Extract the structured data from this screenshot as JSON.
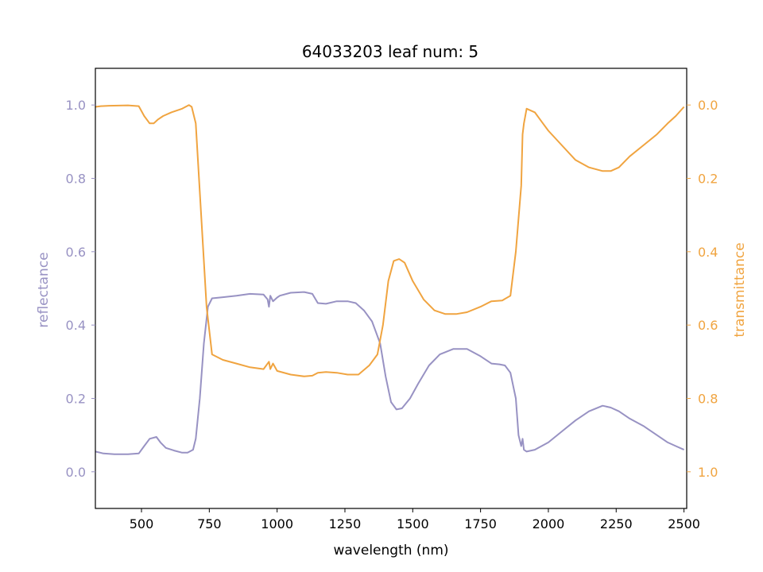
{
  "chart_data": {
    "type": "line",
    "title": "64033203 leaf num: 5",
    "xlabel": "wavelength (nm)",
    "ylabel_left": "reflectance",
    "ylabel_right": "transmittance",
    "xlim": [
      330,
      2510
    ],
    "ylim_left": [
      -0.1,
      1.1
    ],
    "ylim_right": [
      1.1,
      -0.1
    ],
    "right_axis_inverted": true,
    "x_ticks": [
      500,
      750,
      1000,
      1250,
      1500,
      1750,
      2000,
      2250,
      2500
    ],
    "y_ticks_left": [
      0.0,
      0.2,
      0.4,
      0.6,
      0.8,
      1.0
    ],
    "y_ticks_right": [
      0.0,
      0.2,
      0.4,
      0.6,
      0.8,
      1.0
    ],
    "x_tick_labels": [
      "500",
      "750",
      "1000",
      "1250",
      "1500",
      "1750",
      "2000",
      "2250",
      "2500"
    ],
    "y_tick_labels_left": [
      "0.0",
      "0.2",
      "0.4",
      "0.6",
      "0.8",
      "1.0"
    ],
    "y_tick_labels_right": [
      "0.0",
      "0.2",
      "0.4",
      "0.6",
      "0.8",
      "1.0"
    ],
    "grid": false,
    "colors": {
      "reflectance": "#9892c3",
      "transmittance": "#f0a440"
    },
    "series": [
      {
        "axis": "left",
        "points": [
          [
            330,
            0.055
          ],
          [
            360,
            0.05
          ],
          [
            400,
            0.048
          ],
          [
            450,
            0.048
          ],
          [
            490,
            0.05
          ],
          [
            510,
            0.07
          ],
          [
            530,
            0.09
          ],
          [
            555,
            0.095
          ],
          [
            570,
            0.08
          ],
          [
            590,
            0.065
          ],
          [
            620,
            0.058
          ],
          [
            650,
            0.052
          ],
          [
            670,
            0.052
          ],
          [
            690,
            0.06
          ],
          [
            700,
            0.09
          ],
          [
            715,
            0.2
          ],
          [
            730,
            0.35
          ],
          [
            745,
            0.45
          ],
          [
            760,
            0.473
          ],
          [
            800,
            0.476
          ],
          [
            850,
            0.48
          ],
          [
            900,
            0.485
          ],
          [
            950,
            0.483
          ],
          [
            965,
            0.47
          ],
          [
            970,
            0.45
          ],
          [
            975,
            0.48
          ],
          [
            985,
            0.465
          ],
          [
            1000,
            0.475
          ],
          [
            1010,
            0.48
          ],
          [
            1050,
            0.488
          ],
          [
            1100,
            0.49
          ],
          [
            1130,
            0.485
          ],
          [
            1150,
            0.46
          ],
          [
            1180,
            0.458
          ],
          [
            1220,
            0.465
          ],
          [
            1260,
            0.465
          ],
          [
            1290,
            0.46
          ],
          [
            1320,
            0.44
          ],
          [
            1350,
            0.41
          ],
          [
            1380,
            0.35
          ],
          [
            1400,
            0.26
          ],
          [
            1420,
            0.19
          ],
          [
            1440,
            0.17
          ],
          [
            1460,
            0.173
          ],
          [
            1490,
            0.2
          ],
          [
            1520,
            0.24
          ],
          [
            1560,
            0.29
          ],
          [
            1600,
            0.32
          ],
          [
            1650,
            0.335
          ],
          [
            1700,
            0.335
          ],
          [
            1750,
            0.315
          ],
          [
            1790,
            0.295
          ],
          [
            1820,
            0.293
          ],
          [
            1840,
            0.29
          ],
          [
            1860,
            0.27
          ],
          [
            1880,
            0.2
          ],
          [
            1890,
            0.1
          ],
          [
            1900,
            0.07
          ],
          [
            1905,
            0.09
          ],
          [
            1910,
            0.06
          ],
          [
            1920,
            0.055
          ],
          [
            1950,
            0.06
          ],
          [
            2000,
            0.08
          ],
          [
            2050,
            0.11
          ],
          [
            2100,
            0.14
          ],
          [
            2150,
            0.165
          ],
          [
            2200,
            0.18
          ],
          [
            2230,
            0.175
          ],
          [
            2260,
            0.165
          ],
          [
            2300,
            0.145
          ],
          [
            2350,
            0.125
          ],
          [
            2400,
            0.1
          ],
          [
            2440,
            0.08
          ],
          [
            2470,
            0.07
          ],
          [
            2500,
            0.06
          ]
        ]
      },
      {
        "axis": "right",
        "points": [
          [
            330,
            0.005
          ],
          [
            350,
            0.003
          ],
          [
            380,
            0.002
          ],
          [
            450,
            0.001
          ],
          [
            490,
            0.003
          ],
          [
            510,
            0.03
          ],
          [
            530,
            0.05
          ],
          [
            545,
            0.05
          ],
          [
            560,
            0.04
          ],
          [
            580,
            0.03
          ],
          [
            610,
            0.02
          ],
          [
            650,
            0.01
          ],
          [
            675,
            0.0
          ],
          [
            685,
            0.005
          ],
          [
            700,
            0.05
          ],
          [
            720,
            0.3
          ],
          [
            740,
            0.55
          ],
          [
            760,
            0.68
          ],
          [
            800,
            0.695
          ],
          [
            850,
            0.705
          ],
          [
            900,
            0.715
          ],
          [
            950,
            0.72
          ],
          [
            970,
            0.7
          ],
          [
            975,
            0.72
          ],
          [
            985,
            0.705
          ],
          [
            1000,
            0.725
          ],
          [
            1050,
            0.735
          ],
          [
            1100,
            0.74
          ],
          [
            1130,
            0.738
          ],
          [
            1150,
            0.73
          ],
          [
            1180,
            0.728
          ],
          [
            1220,
            0.73
          ],
          [
            1260,
            0.735
          ],
          [
            1300,
            0.735
          ],
          [
            1340,
            0.71
          ],
          [
            1370,
            0.68
          ],
          [
            1390,
            0.6
          ],
          [
            1410,
            0.48
          ],
          [
            1430,
            0.425
          ],
          [
            1450,
            0.42
          ],
          [
            1470,
            0.43
          ],
          [
            1500,
            0.48
          ],
          [
            1540,
            0.53
          ],
          [
            1580,
            0.56
          ],
          [
            1620,
            0.57
          ],
          [
            1660,
            0.57
          ],
          [
            1700,
            0.565
          ],
          [
            1750,
            0.55
          ],
          [
            1790,
            0.535
          ],
          [
            1830,
            0.533
          ],
          [
            1860,
            0.52
          ],
          [
            1880,
            0.4
          ],
          [
            1900,
            0.22
          ],
          [
            1905,
            0.08
          ],
          [
            1910,
            0.05
          ],
          [
            1920,
            0.01
          ],
          [
            1950,
            0.02
          ],
          [
            1980,
            0.05
          ],
          [
            2000,
            0.07
          ],
          [
            2050,
            0.11
          ],
          [
            2100,
            0.15
          ],
          [
            2150,
            0.17
          ],
          [
            2200,
            0.18
          ],
          [
            2230,
            0.18
          ],
          [
            2260,
            0.17
          ],
          [
            2300,
            0.14
          ],
          [
            2350,
            0.11
          ],
          [
            2400,
            0.08
          ],
          [
            2440,
            0.05
          ],
          [
            2470,
            0.03
          ],
          [
            2500,
            0.005
          ]
        ]
      }
    ]
  }
}
